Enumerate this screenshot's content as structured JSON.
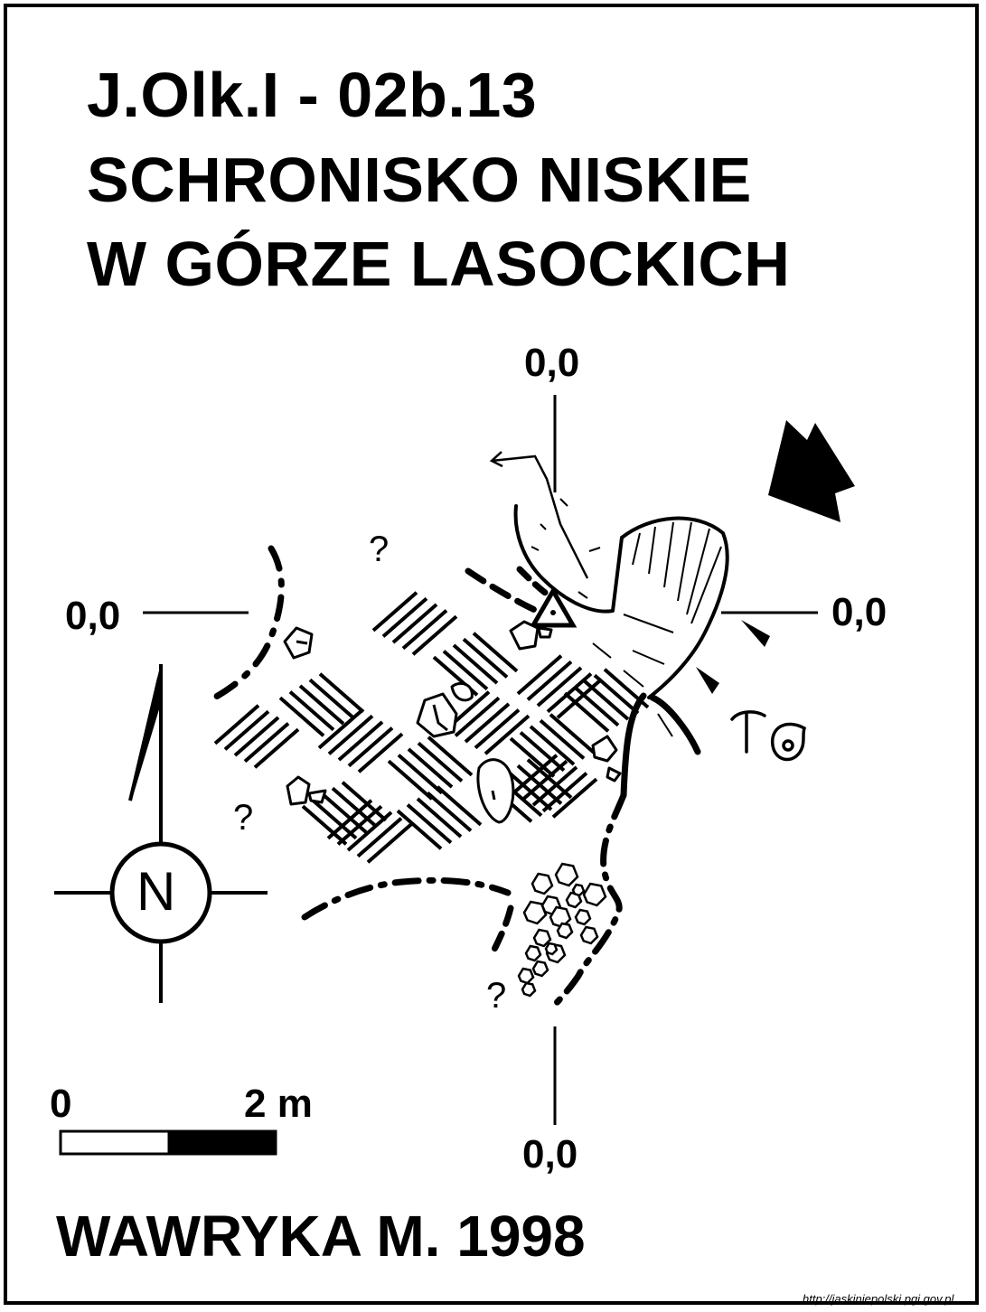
{
  "title": {
    "line1": "J.Olk.I - 02b.13",
    "line2": "SCHRONISKO NISKIE",
    "line3": "W GÓRZE LASOCKICH"
  },
  "axis_labels": {
    "top": "0,0",
    "left": "0,0",
    "right": "0,0",
    "bottom": "0,0"
  },
  "north_label": "N",
  "unknown_marks": [
    "?",
    "?",
    "?"
  ],
  "scale_bar": {
    "start_label": "0",
    "end_label": "2 m"
  },
  "author": "WAWRYKA M. 1998",
  "credit": "http://jaskiniepolski.pgi.gov.pl",
  "colors": {
    "ink": "#000000",
    "paper": "#ffffff"
  },
  "icons": [
    "north-arrow-icon",
    "entrance-arrow-icon",
    "survey-station-icon",
    "hammer-icon",
    "snail-icon"
  ]
}
